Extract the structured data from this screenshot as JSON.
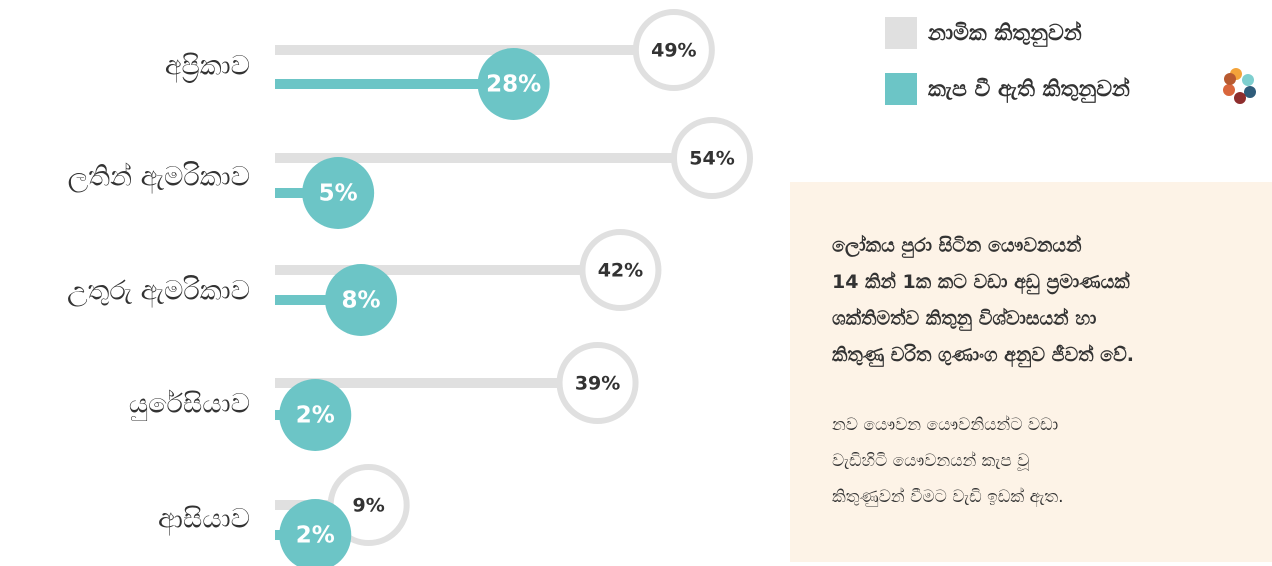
{
  "chart_data": {
    "type": "lollipop",
    "categories": [
      "අප්‍රිකාව",
      "ලතින් ඇමරිකාව",
      "උතුරු ඇමරිකාව",
      "යුරේසියාව",
      "ආසියාව"
    ],
    "series": [
      {
        "name": "නාමික කිතුනුවන්",
        "color": "#e0e0e0",
        "values": [
          49,
          54,
          42,
          39,
          9
        ],
        "value_labels": [
          "49%",
          "54%",
          "42%",
          "39%",
          "9%"
        ]
      },
      {
        "name": "කැප වී ඇති කිතුනුවන්",
        "color": "#6cc5c6",
        "values": [
          28,
          5,
          8,
          2,
          2
        ],
        "value_labels": [
          "28%",
          "5%",
          "8%",
          "2%",
          "2%"
        ]
      }
    ]
  },
  "note": {
    "lead": [
      "ලෝකය පුරා සිටින යෞවනයන්",
      "14 කින් 1ක කට වඩා අඩු ප්‍රමාණයක්",
      "ශක්තිමත්ව කිතුනු විශ්වාසයන් හා",
      "කිතුණු චරිත ගුණාංග අනුව ජීවත් වේ."
    ],
    "body": [
      "නව යෞවන යෞවනියන්ට වඩා",
      "වැඩිහිටි යෞවනයන් කැප වූ",
      "කිතුණුවන් වීමට වැඩි ඉඩක් ඇත."
    ]
  }
}
